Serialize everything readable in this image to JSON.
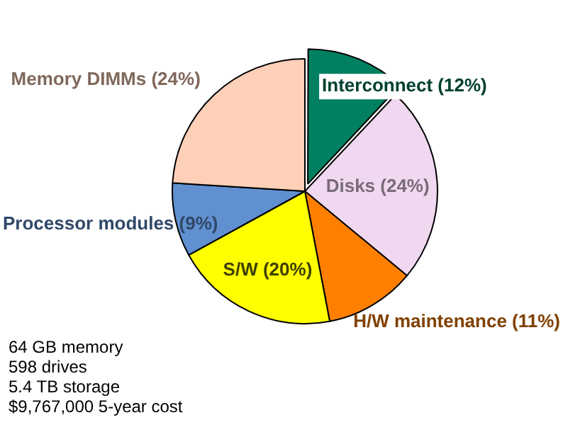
{
  "chart_data": {
    "type": "pie",
    "categories": [
      "Interconnect (12%)",
      "Disks (24%)",
      "H/W maintenance (11%)",
      "S/W (20%)",
      "Processor modules (9%)",
      "Memory DIMMs (24%)"
    ],
    "values": [
      12,
      24,
      11,
      20,
      9,
      24
    ],
    "colors": [
      "#008060",
      "#f0d8f0",
      "#ff8000",
      "#ffff00",
      "#6090d0",
      "#ffd0b8"
    ],
    "annotations": [
      "64 GB memory",
      "598 drives",
      "5.4 TB storage",
      "$9,767,000 5-year cost"
    ]
  }
}
